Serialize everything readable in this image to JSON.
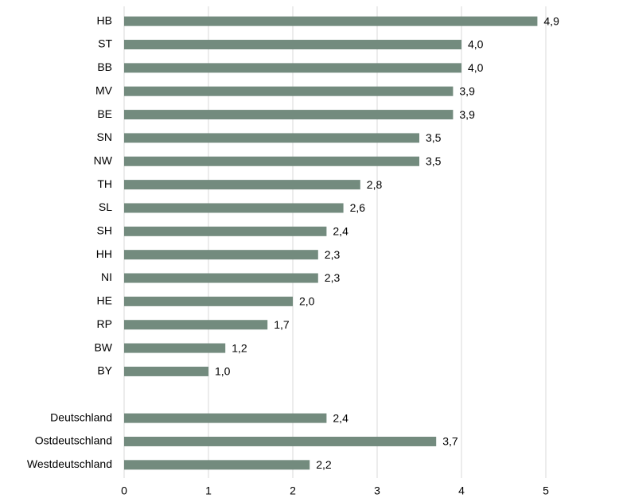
{
  "chart_data": {
    "type": "hbar",
    "categories": [
      "HB",
      "ST",
      "BB",
      "MV",
      "BE",
      "SN",
      "NW",
      "TH",
      "SL",
      "SH",
      "HH",
      "NI",
      "HE",
      "RP",
      "BW",
      "BY",
      null,
      "Deutschland",
      "Ostdeutschland",
      "Westdeutschland"
    ],
    "values": [
      4.9,
      4.0,
      4.0,
      3.9,
      3.9,
      3.5,
      3.5,
      2.8,
      2.6,
      2.4,
      2.3,
      2.3,
      2.0,
      1.7,
      1.2,
      1.0,
      null,
      2.4,
      3.7,
      2.2
    ],
    "value_labels": [
      "4,9",
      "4,0",
      "4,0",
      "3,9",
      "3,9",
      "3,5",
      "3,5",
      "2,8",
      "2,6",
      "2,4",
      "2,3",
      "2,3",
      "2,0",
      "1,7",
      "1,2",
      "1,0",
      null,
      "2,4",
      "3,7",
      "2,2"
    ],
    "color": "#738b7e",
    "xlim": [
      0,
      6
    ],
    "xticks": [
      0,
      1,
      2,
      3,
      4,
      5
    ],
    "grid": true
  }
}
